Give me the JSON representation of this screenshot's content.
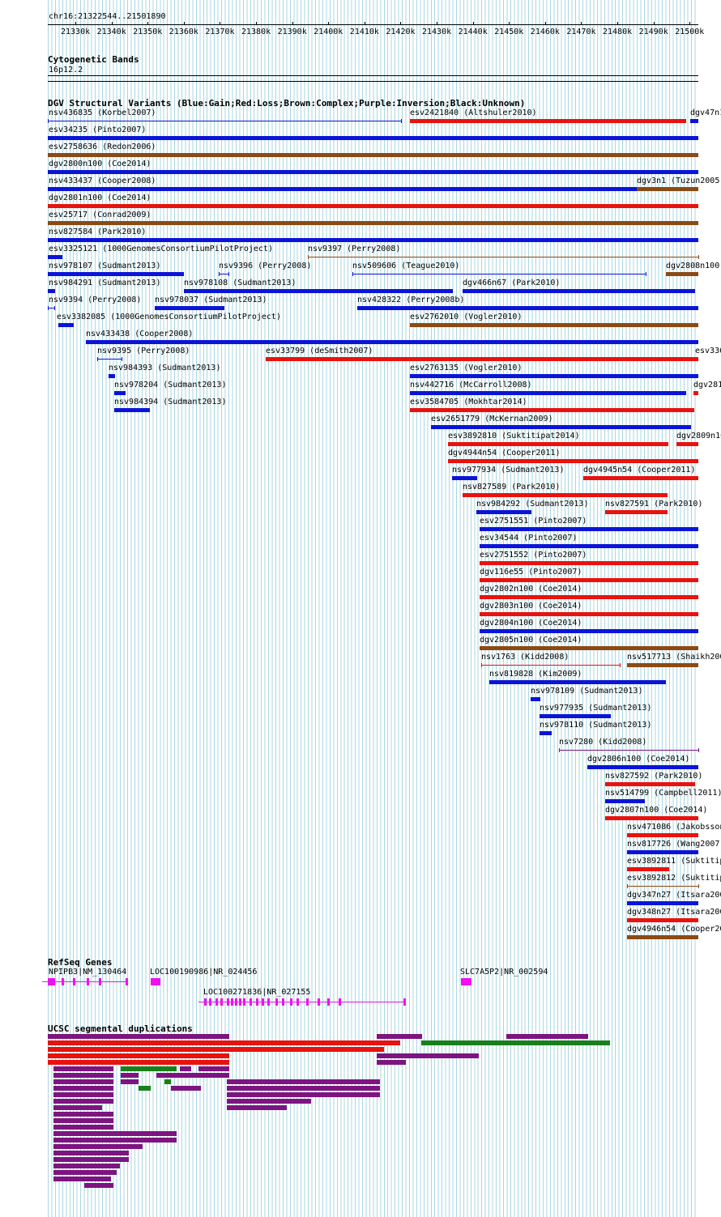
{
  "position": "chr16:21322544..21501890",
  "scale_ticks": [
    "21330k",
    "21340k",
    "21350k",
    "21360k",
    "21370k",
    "21380k",
    "21390k",
    "21400k",
    "21410k",
    "21420k",
    "21430k",
    "21440k",
    "21450k",
    "21460k",
    "21470k",
    "21480k",
    "21490k",
    "21500k"
  ],
  "tracks": {
    "cytoband": {
      "title": "Cytogenetic Bands",
      "band": "16p12.2"
    },
    "dgv": {
      "title": "DGV Structural Variants (Blue:Gain;Red:Loss;Brown:Complex;Purple:Inversion;Black:Unknown)"
    },
    "refseq": {
      "title": "RefSeq Genes"
    },
    "segdup": {
      "title": "UCSC segmental duplications"
    }
  },
  "colors": {
    "gain": "#0a14d8",
    "loss": "#e8120e",
    "complex": "#8b4a14",
    "inversion": "#7d1480",
    "segdup_green": "#18801a",
    "gene": "#ee10ee",
    "grid": "#a9d7e0"
  },
  "variants": [
    {
      "label": "nsv436835 (Korbel2007)",
      "color": "gain",
      "style": "line"
    },
    {
      "label": "esv2421840 (Altshuler2010)",
      "color": "loss"
    },
    {
      "label": "dgv47n1",
      "color": "gain"
    },
    {
      "label": "esv34235 (Pinto2007)",
      "color": "gain"
    },
    {
      "label": "esv2758636 (Redon2006)",
      "color": "complex"
    },
    {
      "label": "dgv2800n100 (Coe2014)",
      "color": "gain"
    },
    {
      "label": "nsv433437 (Cooper2008)",
      "color": "gain"
    },
    {
      "label": "dgv3n1 (Tuzun2005)",
      "color": "complex"
    },
    {
      "label": "dgv2801n100 (Coe2014)",
      "color": "loss"
    },
    {
      "label": "esv25717 (Conrad2009)",
      "color": "complex"
    },
    {
      "label": "nsv827584 (Park2010)",
      "color": "gain"
    },
    {
      "label": "esv3325121 (1000GenomesConsortiumPilotProject)",
      "color": "gain"
    },
    {
      "label": "nsv9397 (Perry2008)",
      "color": "complex",
      "style": "line"
    },
    {
      "label": "nsv978107 (Sudmant2013)",
      "color": "gain"
    },
    {
      "label": "nsv9396 (Perry2008)",
      "color": "gain",
      "style": "line"
    },
    {
      "label": "nsv509606 (Teague2010)",
      "color": "gain",
      "style": "line"
    },
    {
      "label": "dgv2808n100",
      "color": "complex"
    },
    {
      "label": "nsv984291 (Sudmant2013)",
      "color": "gain"
    },
    {
      "label": "nsv978108 (Sudmant2013)",
      "color": "gain"
    },
    {
      "label": "dgv466n67 (Park2010)",
      "color": "gain"
    },
    {
      "label": "nsv9394 (Perry2008)",
      "color": "gain",
      "style": "line"
    },
    {
      "label": "nsv978037 (Sudmant2013)",
      "color": "gain"
    },
    {
      "label": "nsv428322 (Perry2008b)",
      "color": "gain"
    },
    {
      "label": "esv3382085 (1000GenomesConsortiumPilotProject)",
      "color": "gain"
    },
    {
      "label": "esv2762010 (Vogler2010)",
      "color": "complex"
    },
    {
      "label": "nsv433438 (Cooper2008)",
      "color": "gain"
    },
    {
      "label": "nsv9395 (Perry2008)",
      "color": "gain",
      "style": "line"
    },
    {
      "label": "esv33799 (deSmith2007)",
      "color": "loss"
    },
    {
      "label": "esv336",
      "color": "loss"
    },
    {
      "label": "nsv984393 (Sudmant2013)",
      "color": "gain"
    },
    {
      "label": "esv2763135 (Vogler2010)",
      "color": "gain"
    },
    {
      "label": "nsv978204 (Sudmant2013)",
      "color": "gain"
    },
    {
      "label": "nsv442716 (McCarroll2008)",
      "color": "gain"
    },
    {
      "label": "dgv281",
      "color": "loss"
    },
    {
      "label": "nsv984394 (Sudmant2013)",
      "color": "gain"
    },
    {
      "label": "esv3584705 (Mokhtar2014)",
      "color": "loss"
    },
    {
      "label": "esv2651779 (McKernan2009)",
      "color": "gain"
    },
    {
      "label": "esv3892810 (Suktitipat2014)",
      "color": "loss"
    },
    {
      "label": "dgv2809n10",
      "color": "loss"
    },
    {
      "label": "dgv4944n54 (Cooper2011)",
      "color": "loss"
    },
    {
      "label": "nsv977934 (Sudmant2013)",
      "color": "gain"
    },
    {
      "label": "dgv4945n54 (Cooper2011)",
      "color": "loss"
    },
    {
      "label": "nsv827589 (Park2010)",
      "color": "loss"
    },
    {
      "label": "nsv984292 (Sudmant2013)",
      "color": "gain"
    },
    {
      "label": "nsv827591 (Park2010)",
      "color": "loss"
    },
    {
      "label": "esv2751551 (Pinto2007)",
      "color": "gain"
    },
    {
      "label": "esv34544 (Pinto2007)",
      "color": "gain"
    },
    {
      "label": "esv2751552 (Pinto2007)",
      "color": "loss"
    },
    {
      "label": "dgv116e55 (Pinto2007)",
      "color": "loss"
    },
    {
      "label": "dgv2802n100 (Coe2014)",
      "color": "loss"
    },
    {
      "label": "dgv2803n100 (Coe2014)",
      "color": "loss"
    },
    {
      "label": "dgv2804n100 (Coe2014)",
      "color": "gain"
    },
    {
      "label": "dgv2805n100 (Coe2014)",
      "color": "complex"
    },
    {
      "label": "nsv1763 (Kidd2008)",
      "color": "loss",
      "style": "line"
    },
    {
      "label": "nsv517713 (Shaikh200",
      "color": "complex"
    },
    {
      "label": "nsv819828 (Kim2009)",
      "color": "gain"
    },
    {
      "label": "nsv978109 (Sudmant2013)",
      "color": "gain"
    },
    {
      "label": "nsv977935 (Sudmant2013)",
      "color": "gain"
    },
    {
      "label": "nsv978110 (Sudmant2013)",
      "color": "gain"
    },
    {
      "label": "nsv7280 (Kidd2008)",
      "color": "inversion",
      "style": "line"
    },
    {
      "label": "dgv2806n100 (Coe2014)",
      "color": "gain"
    },
    {
      "label": "nsv827592 (Park2010)",
      "color": "loss"
    },
    {
      "label": "nsv514799 (Campbell2011)",
      "color": "gain"
    },
    {
      "label": "dgv2807n100 (Coe2014)",
      "color": "loss"
    },
    {
      "label": "nsv471086 (Jakobsson",
      "color": "loss"
    },
    {
      "label": "nsv817726 (Wang2007)",
      "color": "gain"
    },
    {
      "label": "esv3892811 (Suktitip",
      "color": "loss"
    },
    {
      "label": "esv3892812 (Suktitip",
      "color": "complex",
      "style": "line"
    },
    {
      "label": "dgv347n27 (Itsara200",
      "color": "gain"
    },
    {
      "label": "dgv348n27 (Itsara200",
      "color": "loss"
    },
    {
      "label": "dgv4946n54 (Cooper20",
      "color": "complex"
    }
  ],
  "genes": [
    {
      "label": "NPIPB3|NM_130464"
    },
    {
      "label": "LOC100190986|NR_024456"
    },
    {
      "label": "SLC7A5P2|NR_002594"
    },
    {
      "label": "LOC100271836|NR_027155"
    }
  ]
}
